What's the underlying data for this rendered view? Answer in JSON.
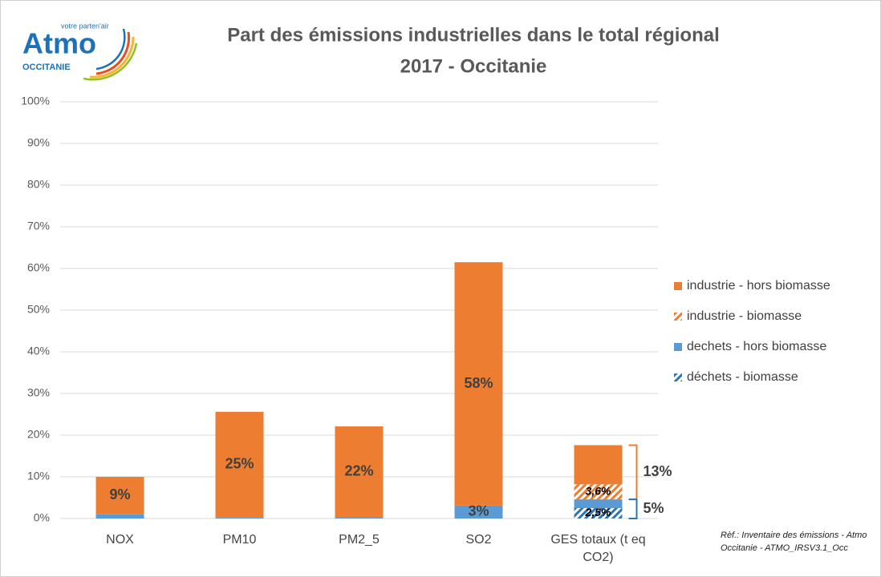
{
  "chart_data": {
    "type": "stacked_bar",
    "logo": {
      "name": "Atmo",
      "tagline": "votre parten'air",
      "region": "OCCITANIE"
    },
    "title": "Part des émissions industrielles dans le total régional",
    "subtitle": "2017 - Occitanie",
    "categories": [
      "NOX",
      "PM10",
      "PM2_5",
      "SO2",
      "GES totaux (t eq CO2)"
    ],
    "series": [
      {
        "name": "industrie - hors biomasse",
        "color": "#ED7D31",
        "pattern": "solid",
        "values": [
          9,
          25.4,
          21.8,
          58.4,
          9.4
        ],
        "value_labels": [
          "9%",
          "25%",
          "22%",
          "58%",
          null
        ]
      },
      {
        "name": "industrie - biomasse",
        "color": "#ED7D31",
        "pattern": "hatch",
        "values": [
          null,
          null,
          null,
          null,
          3.6
        ],
        "value_labels": [
          null,
          null,
          null,
          null,
          "3,6%"
        ]
      },
      {
        "name": "dechets - hors biomasse",
        "color": "#5B9BD5",
        "pattern": "solid",
        "values": [
          1,
          0.2,
          0.3,
          3.1,
          2.1
        ],
        "value_labels": [
          null,
          null,
          null,
          "3%",
          null
        ]
      },
      {
        "name": "déchets - biomasse",
        "color": "#2E75B6",
        "pattern": "hatch",
        "values": [
          null,
          null,
          null,
          null,
          2.5
        ],
        "value_labels": [
          null,
          null,
          null,
          null,
          "2,5%"
        ]
      }
    ],
    "annotations": [
      "13%",
      "5%"
    ],
    "ylim": [
      0,
      100
    ],
    "yticks": [
      {
        "value": 0,
        "label": "0%"
      },
      {
        "value": 10,
        "label": "10%"
      },
      {
        "value": 20,
        "label": "20%"
      },
      {
        "value": 30,
        "label": "30%"
      },
      {
        "value": 40,
        "label": "40%"
      },
      {
        "value": 50,
        "label": "50%"
      },
      {
        "value": 60,
        "label": "60%"
      },
      {
        "value": 70,
        "label": "70%"
      },
      {
        "value": 80,
        "label": "80%"
      },
      {
        "value": 90,
        "label": "90%"
      },
      {
        "value": 100,
        "label": "100%"
      }
    ],
    "grid": true,
    "legend": "right",
    "source": "Rèf.: Inventaire des émissions - Atmo Occitanie - ATMO_IRSV3.1_Occ"
  }
}
